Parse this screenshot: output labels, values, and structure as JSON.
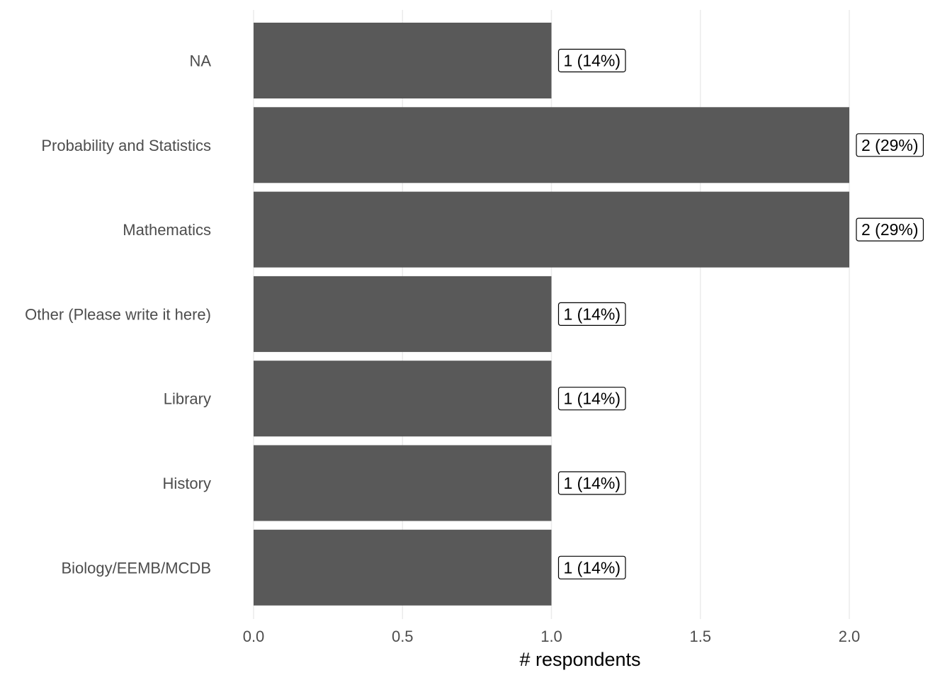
{
  "chart_data": {
    "type": "bar",
    "orientation": "horizontal",
    "categories": [
      "NA",
      "Probability and Statistics",
      "Mathematics",
      "Other (Please write it here)",
      "Library",
      "History",
      "Biology/EEMB/MCDB"
    ],
    "values": [
      1,
      2,
      2,
      1,
      1,
      1,
      1
    ],
    "data_labels": [
      "1 (14%)",
      "2 (29%)",
      "2 (29%)",
      "1 (14%)",
      "1 (14%)",
      "1 (14%)",
      "1 (14%)"
    ],
    "xlabel": "# respondents",
    "ylabel": "",
    "title": "",
    "xlim": [
      0,
      2.2
    ],
    "xticks": [
      0,
      0.5,
      1,
      1.5,
      2
    ],
    "xtick_labels": [
      "0.0",
      "0.5",
      "1.0",
      "1.5",
      "2.0"
    ],
    "grid": "vertical",
    "legend": "none",
    "colors": {
      "bar": "#595959",
      "grid": "#ebebeb",
      "text": "#4d4d4d"
    }
  }
}
